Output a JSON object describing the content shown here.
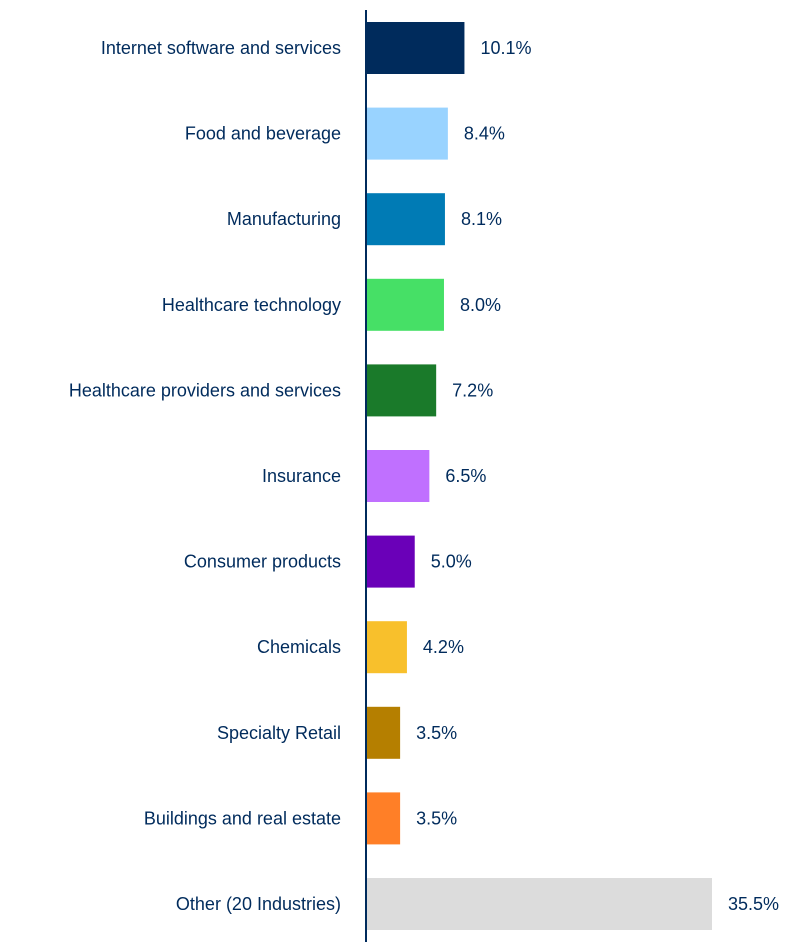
{
  "chart_data": {
    "type": "bar",
    "orientation": "horizontal",
    "title": "",
    "xlabel": "",
    "ylabel": "",
    "grid": false,
    "legend": "none",
    "xlim": [
      0,
      35.5
    ],
    "categories": [
      "Internet software and services",
      "Food and beverage",
      "Manufacturing",
      "Healthcare technology",
      "Healthcare providers and services",
      "Insurance",
      "Consumer products",
      "Chemicals",
      "Specialty Retail",
      "Buildings and real estate",
      "Other (20 Industries)"
    ],
    "values": [
      10.1,
      8.4,
      8.1,
      8.0,
      7.2,
      6.5,
      5.0,
      4.2,
      3.5,
      3.5,
      35.5
    ],
    "value_labels": [
      "10.1%",
      "8.4%",
      "8.1%",
      "8.0%",
      "7.2%",
      "6.5%",
      "5.0%",
      "4.2%",
      "3.5%",
      "3.5%",
      "35.5%"
    ],
    "colors": [
      "#002b5c",
      "#99d3ff",
      "#007bb5",
      "#46e066",
      "#1a7a2a",
      "#c070ff",
      "#6a00b8",
      "#f8c02c",
      "#b57f00",
      "#ff7f27",
      "#dcdcdc"
    ],
    "axis_color": "#002b5c",
    "text_color": "#002b5c"
  }
}
